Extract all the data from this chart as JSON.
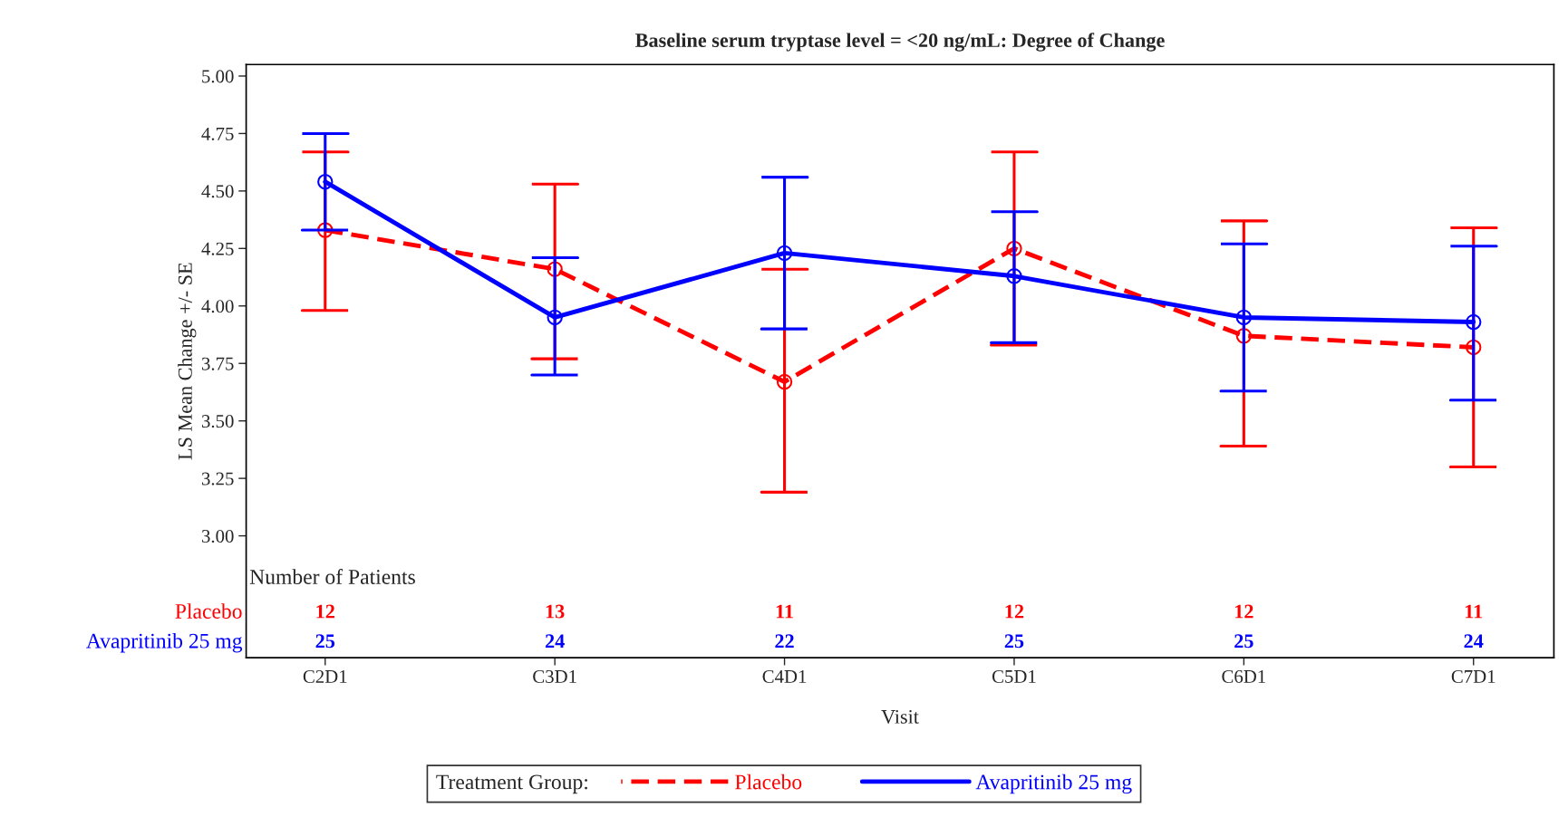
{
  "chart_data": {
    "type": "line",
    "title": "Baseline serum tryptase level = <20 ng/mL: Degree of Change",
    "xlabel": "Visit",
    "ylabel": "LS Mean Change +/- SE",
    "legend_title": "Treatment Group:",
    "categories": [
      "C2D1",
      "C3D1",
      "C4D1",
      "C5D1",
      "C6D1",
      "C7D1"
    ],
    "series": [
      {
        "name": "Placebo",
        "color": "#ff0000",
        "line_style": "dashed",
        "values": [
          4.33,
          4.16,
          3.67,
          4.25,
          3.87,
          3.82
        ],
        "errors": [
          [
            3.98,
            4.67
          ],
          [
            3.77,
            4.53
          ],
          [
            3.19,
            4.16
          ],
          [
            3.83,
            4.67
          ],
          [
            3.39,
            4.37
          ],
          [
            3.3,
            4.34
          ]
        ]
      },
      {
        "name": "Avapritinib 25 mg",
        "color": "#0000ff",
        "line_style": "solid",
        "values": [
          4.54,
          3.95,
          4.23,
          4.13,
          3.95,
          3.93
        ],
        "errors": [
          [
            4.33,
            4.75
          ],
          [
            3.7,
            4.21
          ],
          [
            3.9,
            4.56
          ],
          [
            3.84,
            4.41
          ],
          [
            3.63,
            4.27
          ],
          [
            3.59,
            4.26
          ]
        ]
      }
    ],
    "ylim": [
      2.47,
      5.05
    ],
    "yticks": [
      {
        "value": 3.0,
        "label": "3.00"
      },
      {
        "value": 3.25,
        "label": "3.25"
      },
      {
        "value": 3.5,
        "label": "3.50"
      },
      {
        "value": 3.75,
        "label": "3.75"
      },
      {
        "value": 4.0,
        "label": "4.00"
      },
      {
        "value": 4.25,
        "label": "4.25"
      },
      {
        "value": 4.5,
        "label": "4.50"
      },
      {
        "value": 4.75,
        "label": "4.75"
      },
      {
        "value": 5.0,
        "label": "5.00"
      }
    ],
    "marker": "circle",
    "grid": false,
    "legend": "bottom",
    "annotations": [
      "Number of Patients",
      "Placebo",
      "12",
      "13",
      "11",
      "12",
      "12",
      "11",
      "Avapritinib 25 mg",
      "25",
      "24",
      "22",
      "25",
      "25",
      "24"
    ]
  }
}
